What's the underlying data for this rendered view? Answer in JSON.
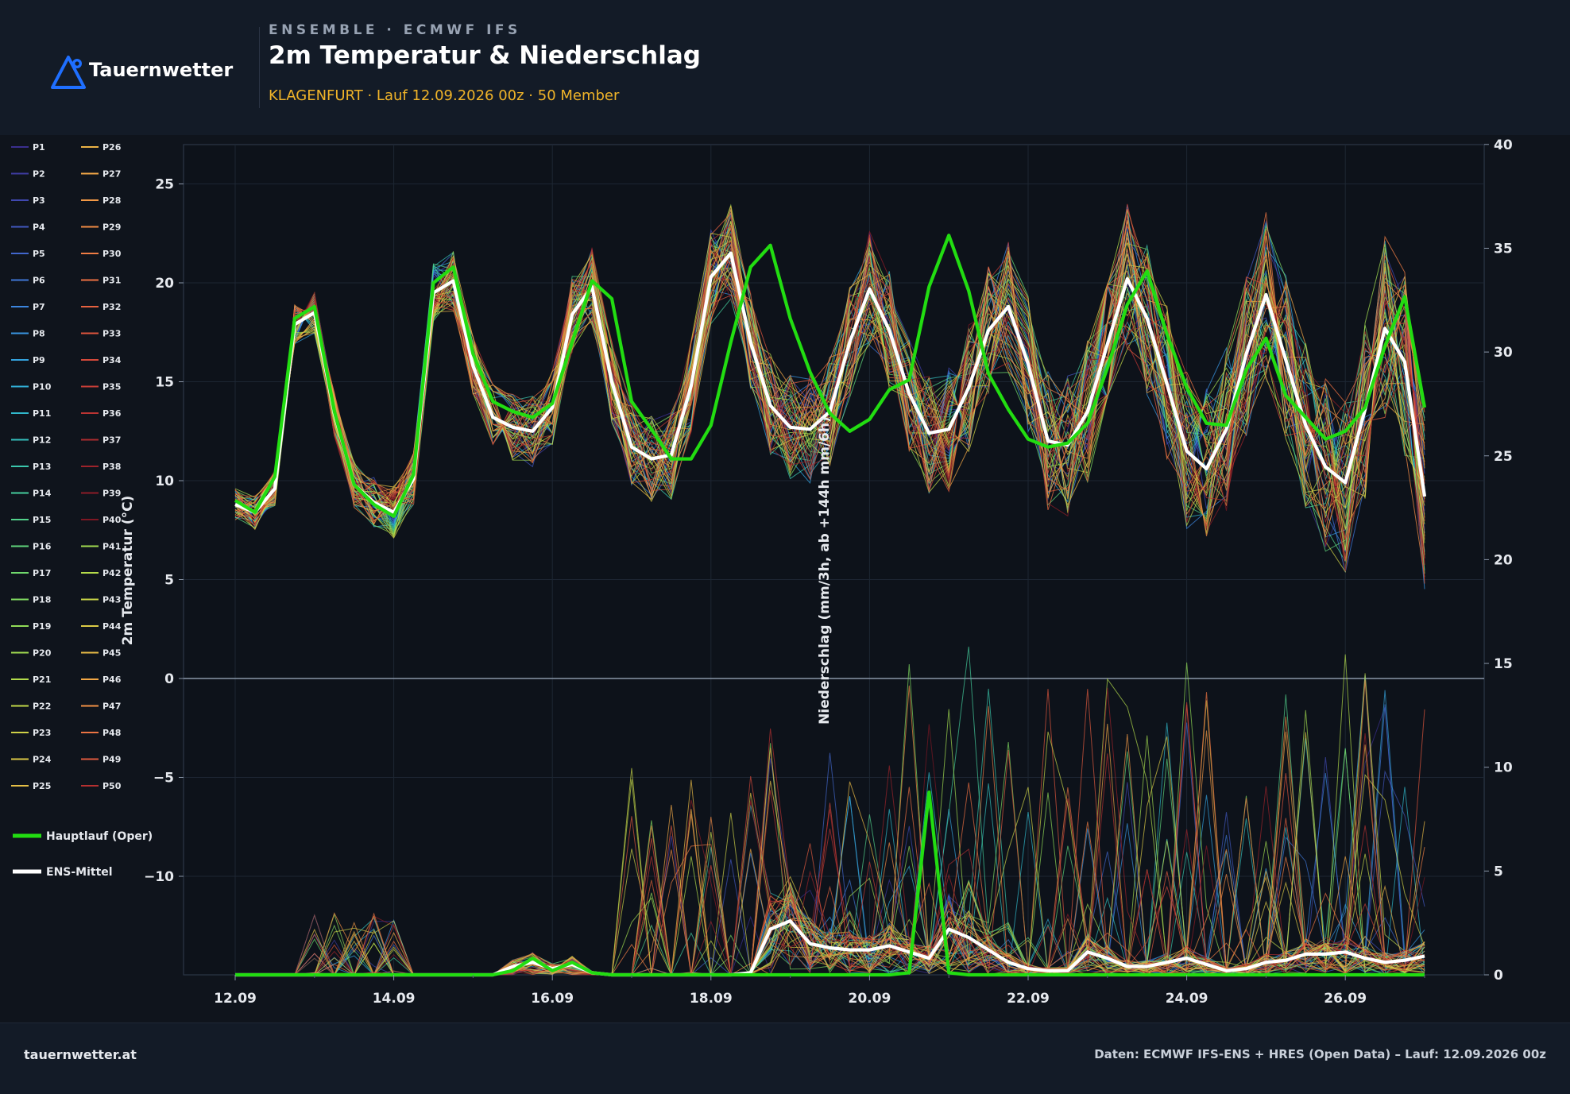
{
  "header": {
    "logo_text": "Tauernwetter",
    "kicker": "ENSEMBLE · ECMWF IFS",
    "title": "2m Temperatur & Niederschlag",
    "subtitle": "KLAGENFURT · Lauf 12.09.2026 00z · 50 Member"
  },
  "footer": {
    "site": "tauernwetter.at",
    "source": "Daten: ECMWF IFS-ENS + HRES (Open Data) – Lauf: 12.09.2026 00z"
  },
  "colors": {
    "background": "#0f141c",
    "plot_background": "#0d121a",
    "oper": "#22dd11",
    "mean": "#ffffff",
    "subtitle": "#f0b429",
    "logo": "#1f6fff",
    "zero_line": "#8a96a8"
  },
  "icons": {
    "logo": "mountain-triangle-icon"
  },
  "chart_data": {
    "type": "line",
    "xlabel": "",
    "ylabel": "2m Temperatur (°C)",
    "ylabel_right": "Niederschlag (mm/3h, ab +144h mm/6h)",
    "ylim": [
      -15,
      27
    ],
    "ylim_right": [
      0,
      40
    ],
    "yticks": [
      -10,
      -5,
      0,
      5,
      10,
      15,
      20,
      25
    ],
    "yticks_right": [
      0,
      5,
      10,
      15,
      20,
      25,
      30,
      35,
      40
    ],
    "xticks": [
      "12.09",
      "14.09",
      "16.09",
      "18.09",
      "20.09",
      "22.09",
      "24.09",
      "26.09"
    ],
    "x_hours_range": [
      0,
      360
    ],
    "grid": true,
    "legend_position": "left",
    "member_count": 50,
    "member_series": [
      "P1",
      "P2",
      "P3",
      "P4",
      "P5",
      "P6",
      "P7",
      "P8",
      "P9",
      "P10",
      "P11",
      "P12",
      "P13",
      "P14",
      "P15",
      "P16",
      "P17",
      "P18",
      "P19",
      "P20",
      "P21",
      "P22",
      "P23",
      "P24",
      "P25",
      "P26",
      "P27",
      "P28",
      "P29",
      "P30",
      "P31",
      "P32",
      "P33",
      "P34",
      "P35",
      "P36",
      "P37",
      "P38",
      "P39",
      "P40",
      "P41",
      "P42",
      "P43",
      "P44",
      "P45",
      "P46",
      "P47",
      "P48",
      "P49",
      "P50"
    ],
    "member_colors": [
      "#3b2f8f",
      "#3e3ba0",
      "#4048b0",
      "#4157bf",
      "#4166cc",
      "#3f76d6",
      "#3c85dd",
      "#3894df",
      "#34a2dd",
      "#31aed6",
      "#31b8cb",
      "#34c0bd",
      "#3bc7ad",
      "#45cd9c",
      "#52d28b",
      "#60d67b",
      "#70d96d",
      "#80db61",
      "#91dc57",
      "#a2dc50",
      "#b2db4b",
      "#c1d748",
      "#cfd147",
      "#dbc946",
      "#e5bf46",
      "#ecb346",
      "#f0a646",
      "#f29946",
      "#f28b45",
      "#f07d44",
      "#ec6f42",
      "#e66240",
      "#de553d",
      "#d4493a",
      "#c83e37",
      "#bb3433",
      "#ac2b2f",
      "#9d232b",
      "#8d1c27",
      "#7e1723",
      "#a2dc50",
      "#b5db4a",
      "#c8d547",
      "#dccb46",
      "#e9bb46",
      "#f2a745",
      "#f28f45",
      "#ec7443",
      "#df5a3e",
      "#b53030"
    ],
    "series": [
      {
        "name": "Hauptlauf (Oper)",
        "x_hours": [
          0,
          6,
          12,
          18,
          24,
          30,
          36,
          42,
          48,
          54,
          60,
          66,
          72,
          78,
          84,
          90,
          96,
          102,
          108,
          114,
          120,
          126,
          132,
          138,
          144,
          150,
          156,
          162,
          168,
          174,
          180,
          186,
          192,
          198,
          204,
          210,
          216,
          222,
          228,
          234,
          240,
          246,
          252,
          258,
          264,
          270,
          276,
          282,
          288,
          294,
          300,
          306,
          312,
          318,
          324,
          330,
          336,
          342,
          348,
          354,
          360
        ],
        "temperature": [
          9.0,
          8.4,
          10.2,
          18.2,
          18.8,
          13.5,
          9.8,
          8.8,
          8.2,
          10.3,
          20.0,
          20.8,
          16.4,
          14.0,
          13.5,
          13.2,
          13.9,
          17.0,
          20.1,
          19.2,
          14.0,
          12.6,
          11.1,
          11.1,
          12.8,
          17.0,
          20.8,
          21.9,
          18.2,
          15.5,
          13.4,
          12.5,
          13.1,
          14.6,
          15.1,
          19.8,
          22.4,
          19.6,
          15.4,
          13.6,
          12.1,
          11.7,
          11.9,
          12.9,
          15.7,
          18.9,
          20.6,
          17.4,
          14.7,
          12.9,
          12.8,
          15.6,
          17.2,
          14.3,
          13.2,
          12.1,
          12.5,
          13.7,
          16.8,
          19.3,
          13.7
        ],
        "precipitation": [
          0,
          0,
          0,
          0,
          0,
          0,
          0,
          0,
          0,
          0,
          0,
          0,
          0,
          0,
          0.2,
          0.8,
          0.2,
          0.6,
          0.1,
          0,
          0,
          0,
          0,
          0,
          0,
          0,
          0,
          0,
          0,
          0,
          0,
          0,
          0,
          0,
          0.1,
          8.8,
          0.1,
          0,
          0,
          0,
          0,
          0,
          0,
          0,
          0,
          0,
          0,
          0,
          0,
          0,
          0,
          0,
          0,
          0,
          0,
          0,
          0,
          0,
          0,
          0,
          0
        ]
      },
      {
        "name": "ENS-Mittel",
        "x_hours": [
          0,
          6,
          12,
          18,
          24,
          30,
          36,
          42,
          48,
          54,
          60,
          66,
          72,
          78,
          84,
          90,
          96,
          102,
          108,
          114,
          120,
          126,
          132,
          138,
          144,
          150,
          156,
          162,
          168,
          174,
          180,
          186,
          192,
          198,
          204,
          210,
          216,
          222,
          228,
          234,
          240,
          246,
          252,
          258,
          264,
          270,
          276,
          282,
          288,
          294,
          300,
          306,
          312,
          318,
          324,
          330,
          336,
          342,
          348,
          354,
          360
        ],
        "temperature": [
          8.8,
          8.4,
          9.6,
          17.9,
          18.5,
          13.4,
          9.8,
          8.9,
          8.4,
          10.1,
          19.5,
          20.1,
          15.8,
          13.2,
          12.7,
          12.5,
          13.7,
          18.4,
          19.8,
          15.0,
          11.7,
          11.1,
          11.3,
          14.8,
          20.3,
          21.5,
          17.0,
          13.8,
          12.7,
          12.6,
          13.5,
          17.0,
          19.7,
          17.6,
          14.4,
          12.4,
          12.6,
          14.7,
          17.6,
          18.8,
          15.9,
          12.0,
          11.8,
          13.5,
          16.9,
          20.2,
          18.2,
          14.9,
          11.5,
          10.6,
          12.6,
          16.4,
          19.4,
          16.1,
          12.8,
          10.7,
          9.9,
          13.6,
          17.7,
          16.0,
          9.2
        ],
        "precipitation": [
          0,
          0,
          0,
          0,
          0,
          0,
          0,
          0,
          0,
          0,
          0,
          0,
          0,
          0,
          0.4,
          0.6,
          0.3,
          0.5,
          0.1,
          0,
          0,
          0,
          0,
          0,
          0,
          0,
          0.1,
          2.2,
          2.6,
          1.5,
          1.3,
          1.2,
          1.2,
          1.4,
          1.1,
          0.8,
          2.2,
          1.8,
          1.2,
          0.6,
          0.3,
          0.2,
          0.2,
          1.1,
          0.8,
          0.4,
          0.4,
          0.6,
          0.8,
          0.5,
          0.2,
          0.3,
          0.6,
          0.7,
          1.0,
          1.0,
          1.1,
          0.8,
          0.6,
          0.7,
          0.9
        ]
      }
    ]
  }
}
